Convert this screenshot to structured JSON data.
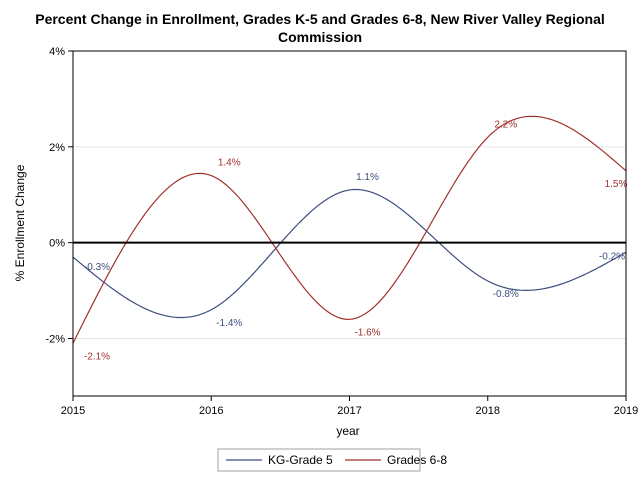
{
  "chart_data": {
    "type": "line",
    "title_line1": "Percent Change in Enrollment, Grades K-5 and Grades 6-8, New River Valley Regional",
    "title_line2": "Commission",
    "xlabel": "year",
    "ylabel": "% Enrollment Change",
    "x": [
      2015,
      2016,
      2017,
      2018,
      2019
    ],
    "xlim": [
      2015,
      2019
    ],
    "ylim": [
      -3.2,
      4
    ],
    "y_ticks": [
      -2,
      0,
      2,
      4
    ],
    "y_tick_labels": [
      "-2%",
      "0%",
      "2%",
      "4%"
    ],
    "x_tick_labels": [
      "2015",
      "2016",
      "2017",
      "2018",
      "2019"
    ],
    "grid": "horizontal",
    "reference_line": 0,
    "legend_position": "bottom",
    "series": [
      {
        "name": "KG-Grade 5",
        "color": "#3d4f7f",
        "values": [
          -0.3,
          -1.4,
          1.1,
          -0.8,
          -0.2
        ],
        "labels": [
          "-0.3%",
          "-1.4%",
          "1.1%",
          "-0.8%",
          "-0.2%"
        ]
      },
      {
        "name": "Grades 6-8",
        "color": "#a0322d",
        "values": [
          -2.1,
          1.4,
          -1.6,
          2.2,
          1.5
        ],
        "labels": [
          "-2.1%",
          "1.4%",
          "-1.6%",
          "2.2%",
          "1.5%"
        ]
      }
    ]
  }
}
